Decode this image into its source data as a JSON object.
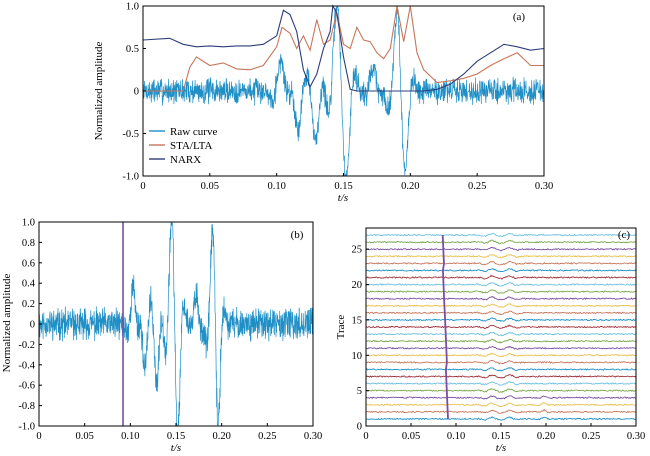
{
  "chart_data": [
    {
      "panel": "(a)",
      "type": "line",
      "xlabel": "t/s",
      "ylabel": "Normalized amplitude",
      "xlim": [
        0,
        0.3
      ],
      "ylim": [
        -1.0,
        1.0
      ],
      "xticks": [
        "0",
        "0.05",
        "0.10",
        "0.15",
        "0.20",
        "0.25",
        "0.30"
      ],
      "yticks": [
        "1.0",
        "0.5",
        "0",
        "-0.5",
        "-1.0"
      ],
      "legend": {
        "placement": "lower-left",
        "entries": [
          "Raw curve",
          "STA/LTA",
          "NARX"
        ]
      },
      "series": [
        {
          "name": "Raw curve",
          "color": "#1f8fc6",
          "noise": 0.12,
          "packets": [
            [
              0.103,
              0.006,
              0.35
            ],
            [
              0.116,
              0.005,
              -0.45
            ],
            [
              0.129,
              0.006,
              -0.6
            ],
            [
              0.145,
              0.007,
              0.85
            ],
            [
              0.152,
              0.006,
              -0.8
            ],
            [
              0.172,
              0.005,
              0.3
            ],
            [
              0.19,
              0.006,
              0.8
            ],
            [
              0.196,
              0.005,
              -0.8
            ]
          ]
        },
        {
          "name": "STA/LTA",
          "color": "#c8765a",
          "x": [
            0,
            0.03,
            0.035,
            0.04,
            0.05,
            0.06,
            0.07,
            0.08,
            0.09,
            0.1,
            0.104,
            0.11,
            0.115,
            0.12,
            0.125,
            0.13,
            0.135,
            0.14,
            0.145,
            0.15,
            0.155,
            0.16,
            0.165,
            0.17,
            0.175,
            0.18,
            0.185,
            0.19,
            0.195,
            0.2,
            0.205,
            0.21,
            0.22,
            0.23,
            0.24,
            0.25,
            0.26,
            0.27,
            0.28,
            0.29,
            0.3
          ],
          "y": [
            0,
            0,
            0.28,
            0.4,
            0.3,
            0.33,
            0.26,
            0.25,
            0.3,
            0.52,
            0.75,
            0.68,
            0.5,
            0.65,
            0.48,
            0.84,
            0.55,
            0.6,
            0.92,
            0.55,
            0.5,
            0.75,
            0.6,
            0.58,
            0.45,
            0.38,
            0.5,
            1.0,
            0.58,
            1.0,
            0.45,
            0.25,
            0.1,
            0.12,
            0.15,
            0.2,
            0.3,
            0.38,
            0.45,
            0.3,
            0.3
          ]
        },
        {
          "name": "NARX",
          "color": "#2c3e7a",
          "x": [
            0,
            0.02,
            0.03,
            0.04,
            0.05,
            0.06,
            0.07,
            0.08,
            0.09,
            0.1,
            0.105,
            0.11,
            0.115,
            0.12,
            0.125,
            0.13,
            0.135,
            0.14,
            0.142,
            0.145,
            0.15,
            0.155,
            0.16,
            0.17,
            0.2,
            0.21,
            0.22,
            0.23,
            0.24,
            0.25,
            0.26,
            0.27,
            0.28,
            0.29,
            0.3
          ],
          "y": [
            0.6,
            0.62,
            0.55,
            0.52,
            0.53,
            0.52,
            0.53,
            0.53,
            0.55,
            0.65,
            0.95,
            0.9,
            0.7,
            0.25,
            0.05,
            0.2,
            0.5,
            0.7,
            1.0,
            0.92,
            0.4,
            0.02,
            0.0,
            0.0,
            0.0,
            0.0,
            0.02,
            0.08,
            0.2,
            0.35,
            0.45,
            0.55,
            0.52,
            0.48,
            0.5
          ]
        }
      ]
    },
    {
      "panel": "(b)",
      "type": "line",
      "xlabel": "t/s",
      "ylabel": "Normalized amplitude",
      "xlim": [
        0,
        0.3
      ],
      "ylim": [
        -1.0,
        1.0
      ],
      "xticks": [
        "0",
        "0.05",
        "0.10",
        "0.15",
        "0.20",
        "0.25",
        "0.30"
      ],
      "yticks": [
        "1.0",
        "0.8",
        "0.6",
        "0.4",
        "0.2",
        "0",
        "-0.2",
        "-0.4",
        "-0.6",
        "-0.8",
        "-1.0"
      ],
      "marker_line": {
        "x": 0.092,
        "color": "#7b4fa0"
      },
      "series": [
        {
          "color": "#1f8fc6",
          "noise": 0.12,
          "packets": [
            [
              0.103,
              0.006,
              0.35
            ],
            [
              0.116,
              0.005,
              -0.45
            ],
            [
              0.129,
              0.006,
              -0.6
            ],
            [
              0.145,
              0.007,
              0.85
            ],
            [
              0.152,
              0.006,
              -0.8
            ],
            [
              0.172,
              0.005,
              0.3
            ],
            [
              0.19,
              0.006,
              0.8
            ],
            [
              0.196,
              0.005,
              -0.8
            ]
          ]
        }
      ]
    },
    {
      "panel": "(c)",
      "type": "line",
      "xlabel": "t/s",
      "ylabel": "Trace",
      "xlim": [
        0,
        0.3
      ],
      "ylim": [
        0,
        28
      ],
      "xticks": [
        "0",
        "0.05",
        "0.10",
        "0.15",
        "0.20",
        "0.25",
        "0.30"
      ],
      "yticks": [
        "0",
        "5",
        "10",
        "15",
        "20",
        "25"
      ],
      "traces": {
        "count": 27,
        "first": 1,
        "pick_top": 0.085,
        "pick_bottom": 0.091
      },
      "pick_line_color": "#7b4fa0",
      "trace_colors": [
        "#1f8fc6",
        "#c8765a",
        "#e8c050",
        "#7b4fa0",
        "#77a84a",
        "#6cc0e0",
        "#a0303a"
      ]
    }
  ]
}
